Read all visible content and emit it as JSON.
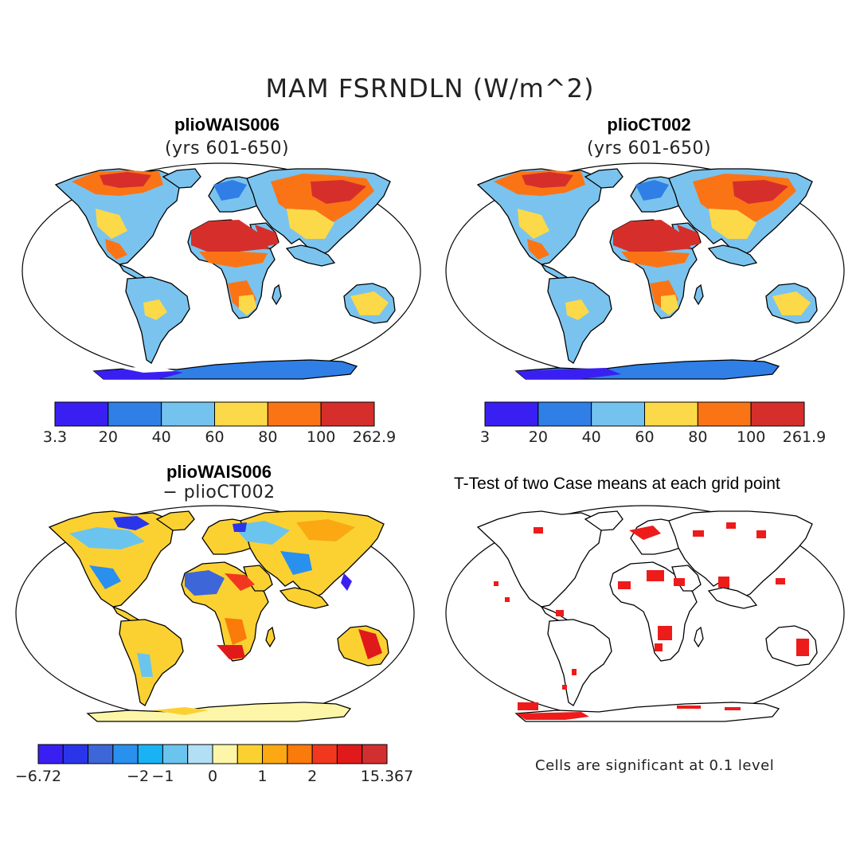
{
  "figure_title": "MAM FSRNDLN (W/m^2)",
  "panels": [
    {
      "title": "plioWAIS006",
      "subtitle": "(yrs 601-650)",
      "colorbar": {
        "labels": [
          "3.3",
          "20",
          "40",
          "60",
          "80",
          "100",
          "262.9"
        ],
        "colors": [
          "#3a1ff2",
          "#2f7fe6",
          "#74c3ee",
          "#fcd948",
          "#fa7416",
          "#d62f2b"
        ]
      }
    },
    {
      "title": "plioCT002",
      "subtitle": "(yrs 601-650)",
      "colorbar": {
        "labels": [
          "3",
          "20",
          "40",
          "60",
          "80",
          "100",
          "261.9"
        ],
        "colors": [
          "#3a1ff2",
          "#2f7fe6",
          "#74c3ee",
          "#fcd948",
          "#fa7416",
          "#d62f2b"
        ]
      }
    },
    {
      "title": "plioWAIS006",
      "subtitle": "− plioCT002",
      "colorbar": {
        "labels": [
          "−6.72",
          "−2",
          "−1",
          "0",
          "1",
          "2",
          "15.367"
        ],
        "colors": [
          "#3a1ff2",
          "#2a35ea",
          "#3d66d8",
          "#2a90ee",
          "#19b3f5",
          "#6bc4ee",
          "#b2dff3",
          "#fdf6a8",
          "#fbd132",
          "#fba812",
          "#fa7a0a",
          "#f2371f",
          "#e01a1a",
          "#d23030"
        ]
      }
    },
    {
      "title": "T-Test of two Case means at each grid point",
      "note": "Cells are significant at 0.1 level"
    }
  ]
}
